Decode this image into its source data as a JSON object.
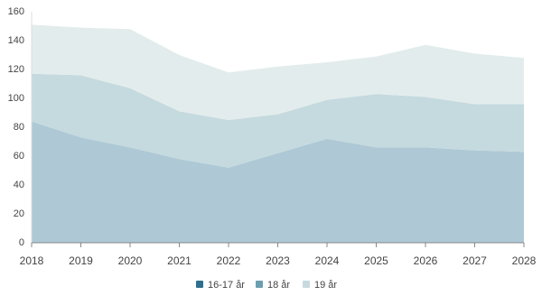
{
  "chart_data": {
    "type": "stacked-area",
    "categories": [
      "2018",
      "2019",
      "2020",
      "2021",
      "2022",
      "2023",
      "2024",
      "2025",
      "2026",
      "2027",
      "2028"
    ],
    "series": [
      {
        "name": "16-17 år",
        "color": "#aec9d5",
        "legend_color": "#2e6f8e",
        "values": [
          84,
          73,
          66,
          58,
          52,
          62,
          72,
          66,
          66,
          64,
          63
        ]
      },
      {
        "name": "18 år",
        "color": "#c5dadf",
        "legend_color": "#6a9fb0",
        "values": [
          33,
          43,
          41,
          33,
          33,
          27,
          27,
          37,
          35,
          32,
          33
        ]
      },
      {
        "name": "19 år",
        "color": "#e3ecec",
        "legend_color": "#c8dadd",
        "values": [
          34,
          33,
          41,
          39,
          33,
          33,
          26,
          26,
          36,
          35,
          32
        ]
      }
    ],
    "ylim": [
      0,
      160
    ],
    "yticks": [
      0,
      20,
      40,
      60,
      80,
      100,
      120,
      140,
      160
    ],
    "grid": false,
    "legend": "bottom"
  }
}
